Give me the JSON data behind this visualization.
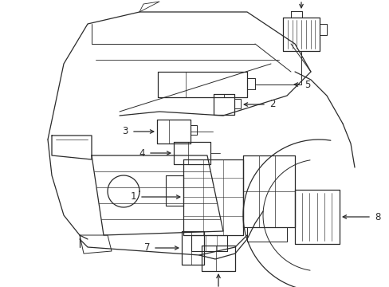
{
  "background_color": "#ffffff",
  "line_color": "#2a2a2a",
  "label_color": "#000000",
  "fig_width": 4.89,
  "fig_height": 3.6,
  "dpi": 100,
  "lw": 0.9,
  "fontsize": 8.5
}
